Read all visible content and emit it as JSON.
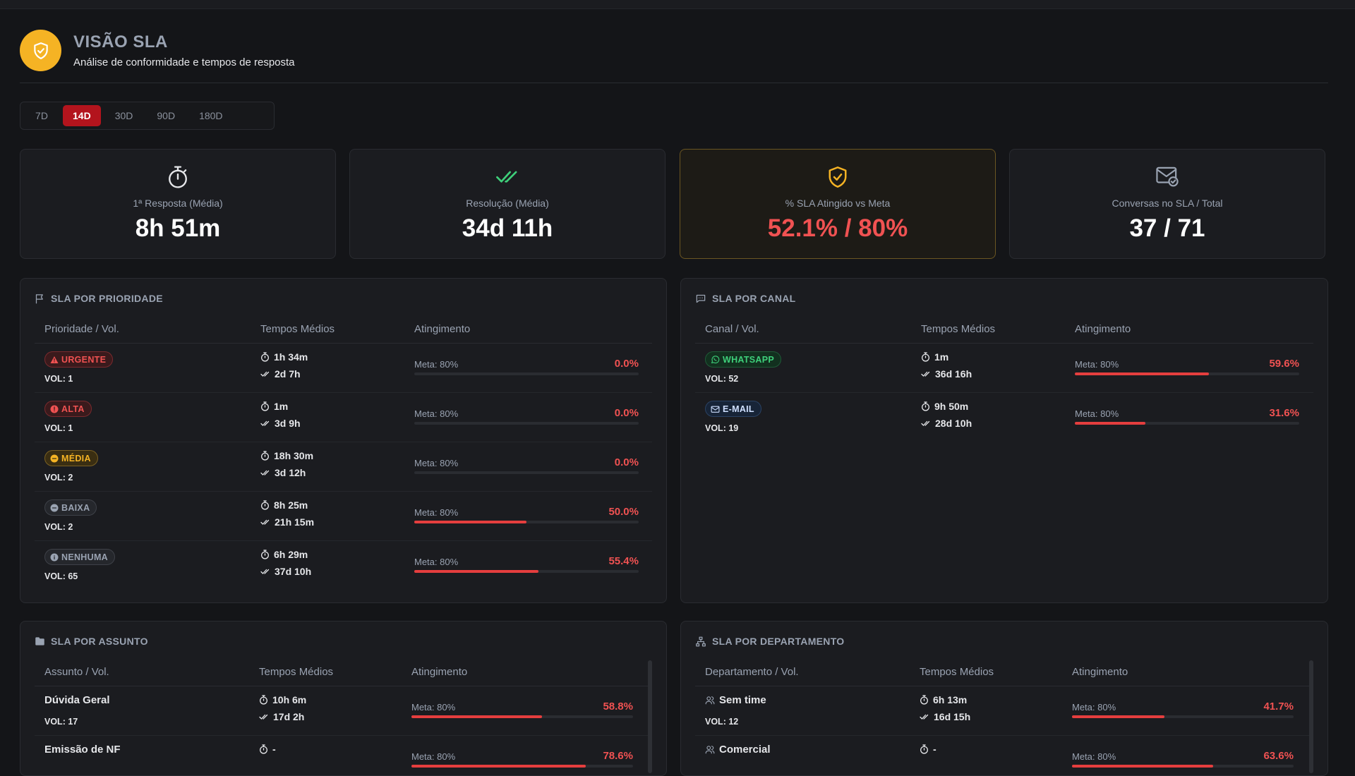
{
  "header": {
    "title": "VISÃO SLA",
    "subtitle": "Análise de conformidade e tempos de resposta"
  },
  "periods": [
    {
      "label": "7D",
      "active": false
    },
    {
      "label": "14D",
      "active": true
    },
    {
      "label": "30D",
      "active": false
    },
    {
      "label": "90D",
      "active": false
    },
    {
      "label": "180D",
      "active": false
    }
  ],
  "kpis": [
    {
      "icon": "stopwatch-icon",
      "label": "1ª Resposta (Média)",
      "value": "8h 51m"
    },
    {
      "icon": "double-check-icon",
      "label": "Resolução (Média)",
      "value": "34d 11h"
    },
    {
      "icon": "shield-check-icon",
      "label": "% SLA Atingido vs Meta",
      "value": "52.1% / 80%"
    },
    {
      "icon": "mail-check-icon",
      "label": "Conversas no SLA / Total",
      "value": "37 / 71"
    }
  ],
  "priority": {
    "title": "SLA POR PRIORIDADE",
    "columns": [
      "Prioridade / Vol.",
      "Tempos Médios",
      "Atingimento"
    ],
    "rows": [
      {
        "badge": "URGENTE",
        "icon": "warning-icon",
        "vol": "VOL: 1",
        "first": "1h 34m",
        "resolution": "2d 7h",
        "meta": "Meta: 80%",
        "pct": "0.0%",
        "fill": 0.0,
        "bg": "#3a1a1c",
        "border": "#7a2a2e",
        "color": "#f05252"
      },
      {
        "badge": "ALTA",
        "icon": "alert-circle-icon",
        "vol": "VOL: 1",
        "first": "1m",
        "resolution": "3d 9h",
        "meta": "Meta: 80%",
        "pct": "0.0%",
        "fill": 0.0,
        "bg": "#3a1a1c",
        "border": "#7a2a2e",
        "color": "#f05252"
      },
      {
        "badge": "MÉDIA",
        "icon": "circle-icon",
        "vol": "VOL: 2",
        "first": "18h 30m",
        "resolution": "3d 12h",
        "meta": "Meta: 80%",
        "pct": "0.0%",
        "fill": 0.0,
        "bg": "#3a2e12",
        "border": "#7a6022",
        "color": "#f5b324"
      },
      {
        "badge": "BAIXA",
        "icon": "minus-circle-icon",
        "vol": "VOL: 2",
        "first": "8h 25m",
        "resolution": "21h 15m",
        "meta": "Meta: 80%",
        "pct": "50.0%",
        "fill": 0.5,
        "bg": "#25272c",
        "border": "#3e4148",
        "color": "#9aa3b2"
      },
      {
        "badge": "NENHUMA",
        "icon": "info-circle-icon",
        "vol": "VOL: 65",
        "first": "6h 29m",
        "resolution": "37d 10h",
        "meta": "Meta: 80%",
        "pct": "55.4%",
        "fill": 0.554,
        "bg": "#25272c",
        "border": "#3e4148",
        "color": "#9aa3b2"
      }
    ]
  },
  "channel": {
    "title": "SLA POR CANAL",
    "columns": [
      "Canal / Vol.",
      "Tempos Médios",
      "Atingimento"
    ],
    "rows": [
      {
        "badge": "WHATSAPP",
        "icon": "whatsapp-icon",
        "vol": "VOL: 52",
        "first": "1m",
        "resolution": "36d 16h",
        "meta": "Meta: 80%",
        "pct": "59.6%",
        "fill": 0.596,
        "bg": "#12301f",
        "border": "#1f5a37",
        "color": "#3ecf7a"
      },
      {
        "badge": "E-MAIL",
        "icon": "mail-icon",
        "vol": "VOL: 19",
        "first": "9h 50m",
        "resolution": "28d 10h",
        "meta": "Meta: 80%",
        "pct": "31.6%",
        "fill": 0.316,
        "bg": "#172437",
        "border": "#2a4263",
        "color": "#cfe0ff"
      }
    ]
  },
  "subject": {
    "title": "SLA POR ASSUNTO",
    "columns": [
      "Assunto / Vol.",
      "Tempos Médios",
      "Atingimento"
    ],
    "rows": [
      {
        "name": "Dúvida Geral",
        "vol": "VOL: 17",
        "first": "10h 6m",
        "resolution": "17d 2h",
        "meta": "Meta: 80%",
        "pct": "58.8%",
        "fill": 0.588
      },
      {
        "name": "Emissão de NF",
        "vol": "",
        "first": "-",
        "resolution": "",
        "meta": "Meta: 80%",
        "pct": "78.6%",
        "fill": 0.786
      }
    ]
  },
  "department": {
    "title": "SLA POR DEPARTAMENTO",
    "columns": [
      "Departamento / Vol.",
      "Tempos Médios",
      "Atingimento"
    ],
    "rows": [
      {
        "name": "Sem time",
        "vol": "VOL: 12",
        "first": "6h 13m",
        "resolution": "16d 15h",
        "meta": "Meta: 80%",
        "pct": "41.7%",
        "fill": 0.417
      },
      {
        "name": "Comercial",
        "vol": "",
        "first": "-",
        "resolution": "",
        "meta": "Meta: 80%",
        "pct": "63.6%",
        "fill": 0.636
      }
    ]
  }
}
